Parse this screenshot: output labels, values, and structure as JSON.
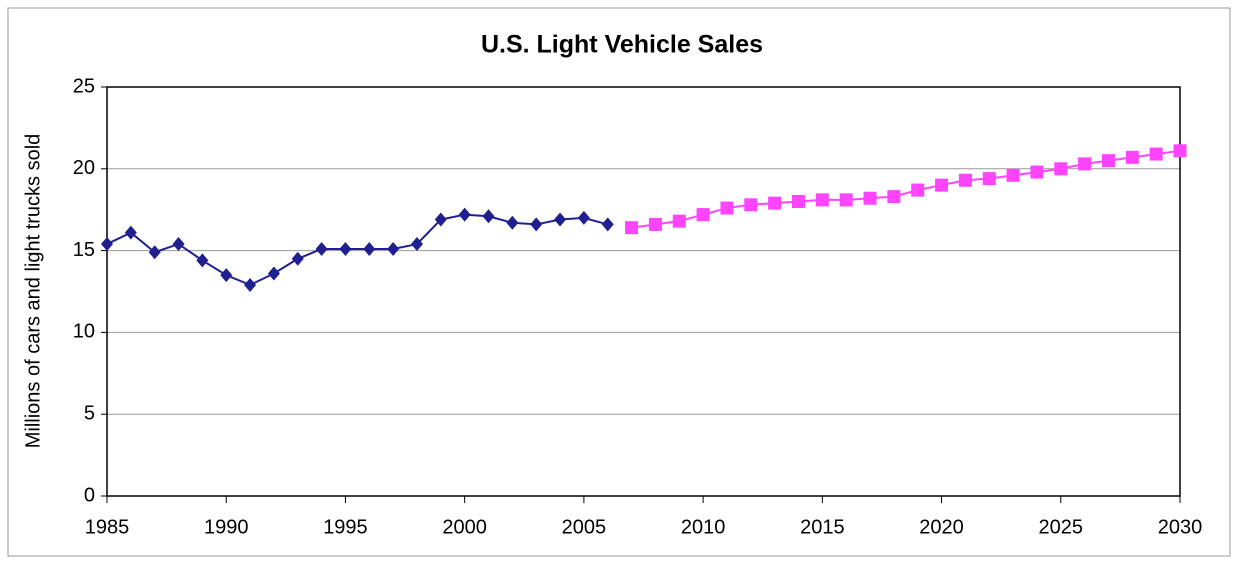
{
  "chart_data": {
    "type": "line",
    "title": "U.S. Light Vehicle Sales",
    "y_label": "Millions of cars and light trucks sold",
    "x": [
      1985,
      1986,
      1987,
      1988,
      1989,
      1990,
      1991,
      1992,
      1993,
      1994,
      1995,
      1996,
      1997,
      1998,
      1999,
      2000,
      2001,
      2002,
      2003,
      2004,
      2005,
      2006,
      2007,
      2008,
      2009,
      2010,
      2011,
      2012,
      2013,
      2014,
      2015,
      2016,
      2017,
      2018,
      2019,
      2020,
      2021,
      2022,
      2023,
      2024,
      2025,
      2026,
      2027,
      2028,
      2029,
      2030
    ],
    "series": [
      {
        "color": "#1f1f8f",
        "marker": "diamond",
        "values": [
          15.4,
          16.1,
          14.9,
          15.4,
          14.4,
          13.5,
          12.9,
          13.6,
          14.5,
          15.1,
          15.1,
          15.1,
          15.1,
          15.4,
          16.9,
          17.2,
          17.1,
          16.7,
          16.6,
          16.9,
          17.0,
          16.6,
          null,
          null,
          null,
          null,
          null,
          null,
          null,
          null,
          null,
          null,
          null,
          null,
          null,
          null,
          null,
          null,
          null,
          null,
          null,
          null,
          null,
          null,
          null,
          null
        ]
      },
      {
        "color": "#ff44ff",
        "marker": "square",
        "values": [
          null,
          null,
          null,
          null,
          null,
          null,
          null,
          null,
          null,
          null,
          null,
          null,
          null,
          null,
          null,
          null,
          null,
          null,
          null,
          null,
          null,
          null,
          16.4,
          16.6,
          16.8,
          17.2,
          17.6,
          17.8,
          17.9,
          18.0,
          18.1,
          18.1,
          18.2,
          18.3,
          18.7,
          19.0,
          19.3,
          19.4,
          19.6,
          19.8,
          20.0,
          20.3,
          20.5,
          20.7,
          20.9,
          21.1
        ]
      }
    ],
    "xlim": [
      1985,
      2030
    ],
    "xticks": [
      1985,
      1990,
      1995,
      2000,
      2005,
      2010,
      2015,
      2020,
      2025,
      2030
    ],
    "ylim": [
      0,
      25
    ],
    "yticks": [
      0,
      5,
      10,
      15,
      20,
      25
    ],
    "grid": true
  }
}
